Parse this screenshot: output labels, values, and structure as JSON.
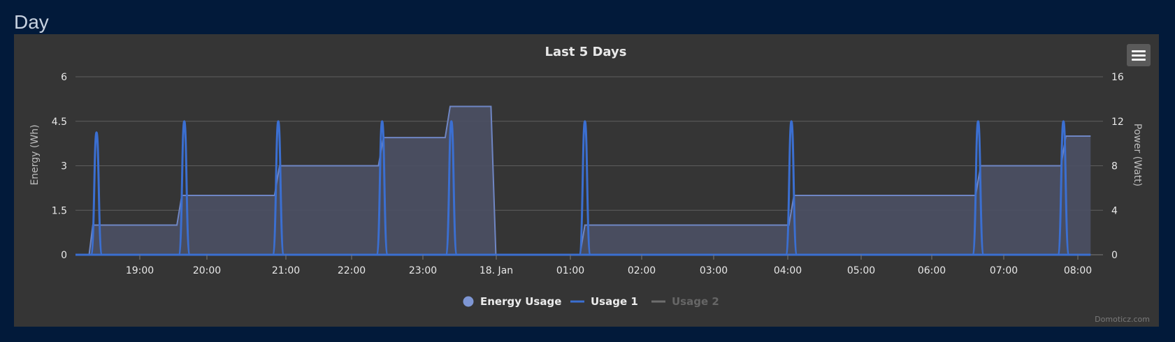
{
  "page": {
    "section_title": "Day"
  },
  "toolbar": {
    "menu_icon": "hamburger-menu-icon"
  },
  "credit": "Domoticz.com",
  "colors": {
    "background": "#021a3a",
    "panel": "#353535",
    "energy_line": "#6f86c4",
    "energy_fill": "#4b5064",
    "usage1": "#3b6fd1",
    "usage2": "#6e6e6e",
    "grid": "#5e5e5e",
    "text": "#e8e8e8"
  },
  "chart_data": {
    "type": "area",
    "title": "Last 5 Days",
    "x_ticks": [
      "19:00",
      "20:00",
      "21:00",
      "22:00",
      "23:00",
      "18. Jan",
      "01:00",
      "02:00",
      "03:00",
      "04:00",
      "05:00",
      "06:00",
      "07:00",
      "08:00"
    ],
    "x_range": [
      "17 Jan 18:23",
      "18 Jan 08:14"
    ],
    "y_left": {
      "label": "Energy (Wh)",
      "ticks": [
        "0",
        "1.5",
        "3",
        "4.5",
        "6"
      ],
      "range": [
        0,
        6
      ]
    },
    "y_right": {
      "label": "Power (Watt)",
      "ticks": [
        "0",
        "4",
        "8",
        "12",
        "16"
      ],
      "range": [
        0,
        16
      ]
    },
    "grid": true,
    "legend_position": "bottom-center",
    "series": [
      {
        "name": "Energy Usage",
        "axis": "left",
        "style": "area",
        "points": [
          [
            "17 Jan 18:23",
            0
          ],
          [
            "17 Jan 18:34",
            0
          ],
          [
            "17 Jan 18:37",
            1
          ],
          [
            "17 Jan 19:45",
            1
          ],
          [
            "17 Jan 19:49",
            2
          ],
          [
            "17 Jan 21:04",
            2
          ],
          [
            "17 Jan 21:08",
            3
          ],
          [
            "17 Jan 22:28",
            3
          ],
          [
            "17 Jan 22:32",
            3.95
          ],
          [
            "17 Jan 23:22",
            3.95
          ],
          [
            "17 Jan 23:26",
            5
          ],
          [
            "17 Jan 23:59",
            5
          ],
          [
            "18 Jan 00:03",
            0
          ],
          [
            "18 Jan 01:11",
            0
          ],
          [
            "18 Jan 01:15",
            1
          ],
          [
            "18 Jan 04:00",
            1
          ],
          [
            "18 Jan 04:04",
            2
          ],
          [
            "18 Jan 06:31",
            2
          ],
          [
            "18 Jan 06:35",
            3
          ],
          [
            "18 Jan 07:40",
            3
          ],
          [
            "18 Jan 07:44",
            4
          ],
          [
            "18 Jan 08:04",
            4
          ]
        ]
      },
      {
        "name": "Usage 1",
        "axis": "right",
        "style": "line",
        "baseline": {
          "start": "17 Jan 18:23",
          "end": "18 Jan 08:04",
          "value": 0
        },
        "spikes": [
          {
            "time": "17 Jan 18:40",
            "value": 11
          },
          {
            "time": "17 Jan 19:51",
            "value": 12
          },
          {
            "time": "17 Jan 21:07",
            "value": 12
          },
          {
            "time": "17 Jan 22:31",
            "value": 12
          },
          {
            "time": "17 Jan 23:27",
            "value": 12
          },
          {
            "time": "18 Jan 01:15",
            "value": 12
          },
          {
            "time": "18 Jan 04:02",
            "value": 12
          },
          {
            "time": "18 Jan 06:33",
            "value": 12
          },
          {
            "time": "18 Jan 07:42",
            "value": 12
          }
        ]
      },
      {
        "name": "Usage 2",
        "axis": "right",
        "style": "line",
        "hidden": true,
        "points": []
      }
    ]
  }
}
